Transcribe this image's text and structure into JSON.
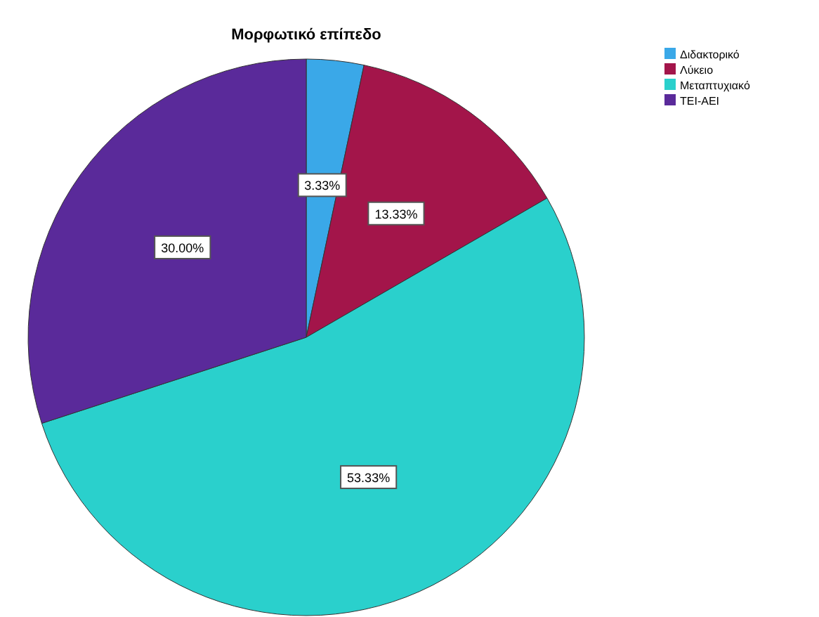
{
  "chart_data": {
    "type": "pie",
    "title": "Μορφωτικό επίπεδο",
    "categories": [
      "Διδακτορικό",
      "Λύκειο",
      "Μεταπτυχιακό",
      "ΤΕΙ-ΑΕΙ"
    ],
    "values": [
      3.33,
      13.33,
      53.33,
      30.0
    ],
    "colors": [
      "#3aa8e8",
      "#a3154a",
      "#2ad0cc",
      "#5a2a9a"
    ],
    "value_labels": [
      "3.33%",
      "13.33%",
      "53.33%",
      "30.00%"
    ],
    "legend": "top right"
  }
}
